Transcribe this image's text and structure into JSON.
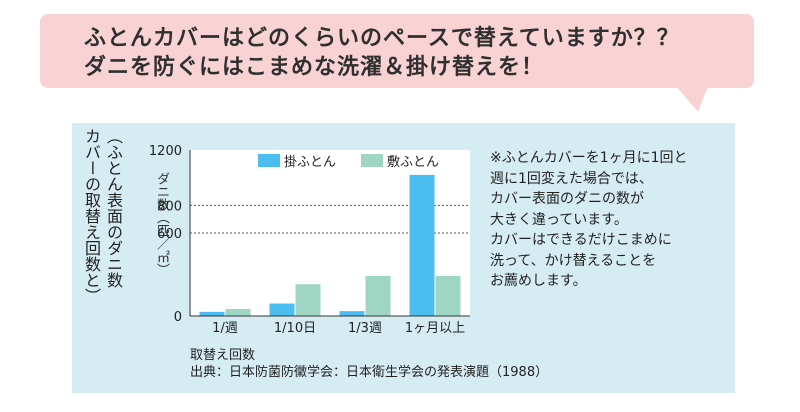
{
  "header": {
    "line1": "ふとんカバーはどのくらいのペースで替えていますか？？",
    "line2": "ダニを防ぐにはこまめな洗濯＆掛け替えを！"
  },
  "y_caption": {
    "line1": "（ふとん表面のダニ数",
    "line2": "カバーの取替え回数と）"
  },
  "note": {
    "lines": [
      "※ふとんカバーを1ヶ月に1回と",
      "週に1回変えた場合では、",
      "カバー表面のダニの数が",
      "大きく違っています。",
      "カバーはできるだけこまめに",
      "洗って、かけ替えることを",
      "お薦めします。"
    ]
  },
  "source": "出典：日本防菌防黴学会：日本衛生学会の発表演題（1988）",
  "colors": {
    "bubble": "#f9d3d4",
    "panel": "#d6ecf3",
    "kake": "#4cbdf0",
    "shiki": "#9fd5c3"
  },
  "chart_data": {
    "type": "bar",
    "categories": [
      "1/週",
      "1/10日",
      "1/3週",
      "1ヶ月以上"
    ],
    "series": [
      {
        "name": "掛ふとん",
        "values": [
          30,
          90,
          35,
          1020
        ]
      },
      {
        "name": "敷ふとん",
        "values": [
          50,
          230,
          290,
          290
        ]
      }
    ],
    "ylabel": "ダニ数（匹／㎡）",
    "xlabel": "取替え回数",
    "ylim": [
      0,
      1200
    ],
    "yticks": [
      0,
      600,
      800,
      1200
    ],
    "gridlines": [
      600,
      800
    ],
    "legend": "top"
  }
}
